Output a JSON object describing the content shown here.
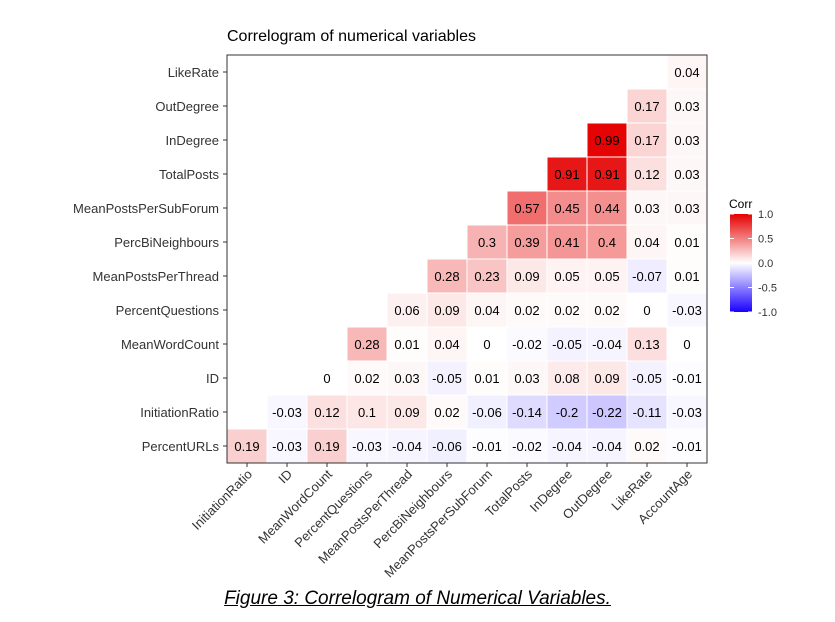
{
  "chart_data": {
    "type": "heatmap",
    "title": "Correlogram of numerical variables",
    "x_labels": [
      "InitiationRatio",
      "ID",
      "MeanWordCount",
      "PercentQuestions",
      "MeanPostsPerThread",
      "PercBiNeighbours",
      "MeanPostsPerSubForum",
      "TotalPosts",
      "InDegree",
      "OutDegree",
      "LikeRate",
      "AccountAge"
    ],
    "y_labels": [
      "LikeRate",
      "OutDegree",
      "InDegree",
      "TotalPosts",
      "MeanPostsPerSubForum",
      "PercBiNeighbours",
      "MeanPostsPerThread",
      "PercentQuestions",
      "MeanWordCount",
      "ID",
      "InitiationRatio",
      "PercentURLs"
    ],
    "cells": [
      [
        "",
        "",
        "",
        "",
        "",
        "",
        "",
        "",
        "",
        "",
        "",
        "0.04"
      ],
      [
        "",
        "",
        "",
        "",
        "",
        "",
        "",
        "",
        "",
        "",
        "0.17",
        "0.03"
      ],
      [
        "",
        "",
        "",
        "",
        "",
        "",
        "",
        "",
        "",
        "0.99",
        "0.17",
        "0.03"
      ],
      [
        "",
        "",
        "",
        "",
        "",
        "",
        "",
        "",
        "0.91",
        "0.91",
        "0.12",
        "0.03"
      ],
      [
        "",
        "",
        "",
        "",
        "",
        "",
        "",
        "0.57",
        "0.45",
        "0.44",
        "0.03",
        "0.03"
      ],
      [
        "",
        "",
        "",
        "",
        "",
        "",
        "0.3",
        "0.39",
        "0.41",
        "0.4",
        "0.04",
        "0.01"
      ],
      [
        "",
        "",
        "",
        "",
        "",
        "0.28",
        "0.23",
        "0.09",
        "0.05",
        "0.05",
        "-0.07",
        "0.01"
      ],
      [
        "",
        "",
        "",
        "",
        "0.06",
        "0.09",
        "0.04",
        "0.02",
        "0.02",
        "0.02",
        "0",
        "-0.03"
      ],
      [
        "",
        "",
        "",
        "0.28",
        "0.01",
        "0.04",
        "0",
        "-0.02",
        "-0.05",
        "-0.04",
        "0.13",
        "0"
      ],
      [
        "",
        "",
        "0",
        "0.02",
        "0.03",
        "-0.05",
        "0.01",
        "0.03",
        "0.08",
        "0.09",
        "-0.05",
        "-0.01"
      ],
      [
        "",
        "-0.03",
        "0.12",
        "0.1",
        "0.09",
        "0.02",
        "-0.06",
        "-0.14",
        "-0.2",
        "-0.22",
        "-0.11",
        "-0.03"
      ],
      [
        "0.19",
        "-0.03",
        "0.19",
        "-0.03",
        "-0.04",
        "-0.06",
        "-0.01",
        "-0.02",
        "-0.04",
        "-0.04",
        "0.02",
        "-0.01"
      ]
    ],
    "legend": {
      "title": "Corr",
      "ticks": [
        "1.0",
        "0.5",
        "0.0",
        "-0.5",
        "-1.0"
      ],
      "range": [
        -1,
        1
      ],
      "placement": "right"
    },
    "colors": {
      "high": "#e50000",
      "mid": "#ffffff",
      "low": "#1a00ff"
    }
  },
  "caption": "Figure 3: Correlogram of Numerical Variables."
}
